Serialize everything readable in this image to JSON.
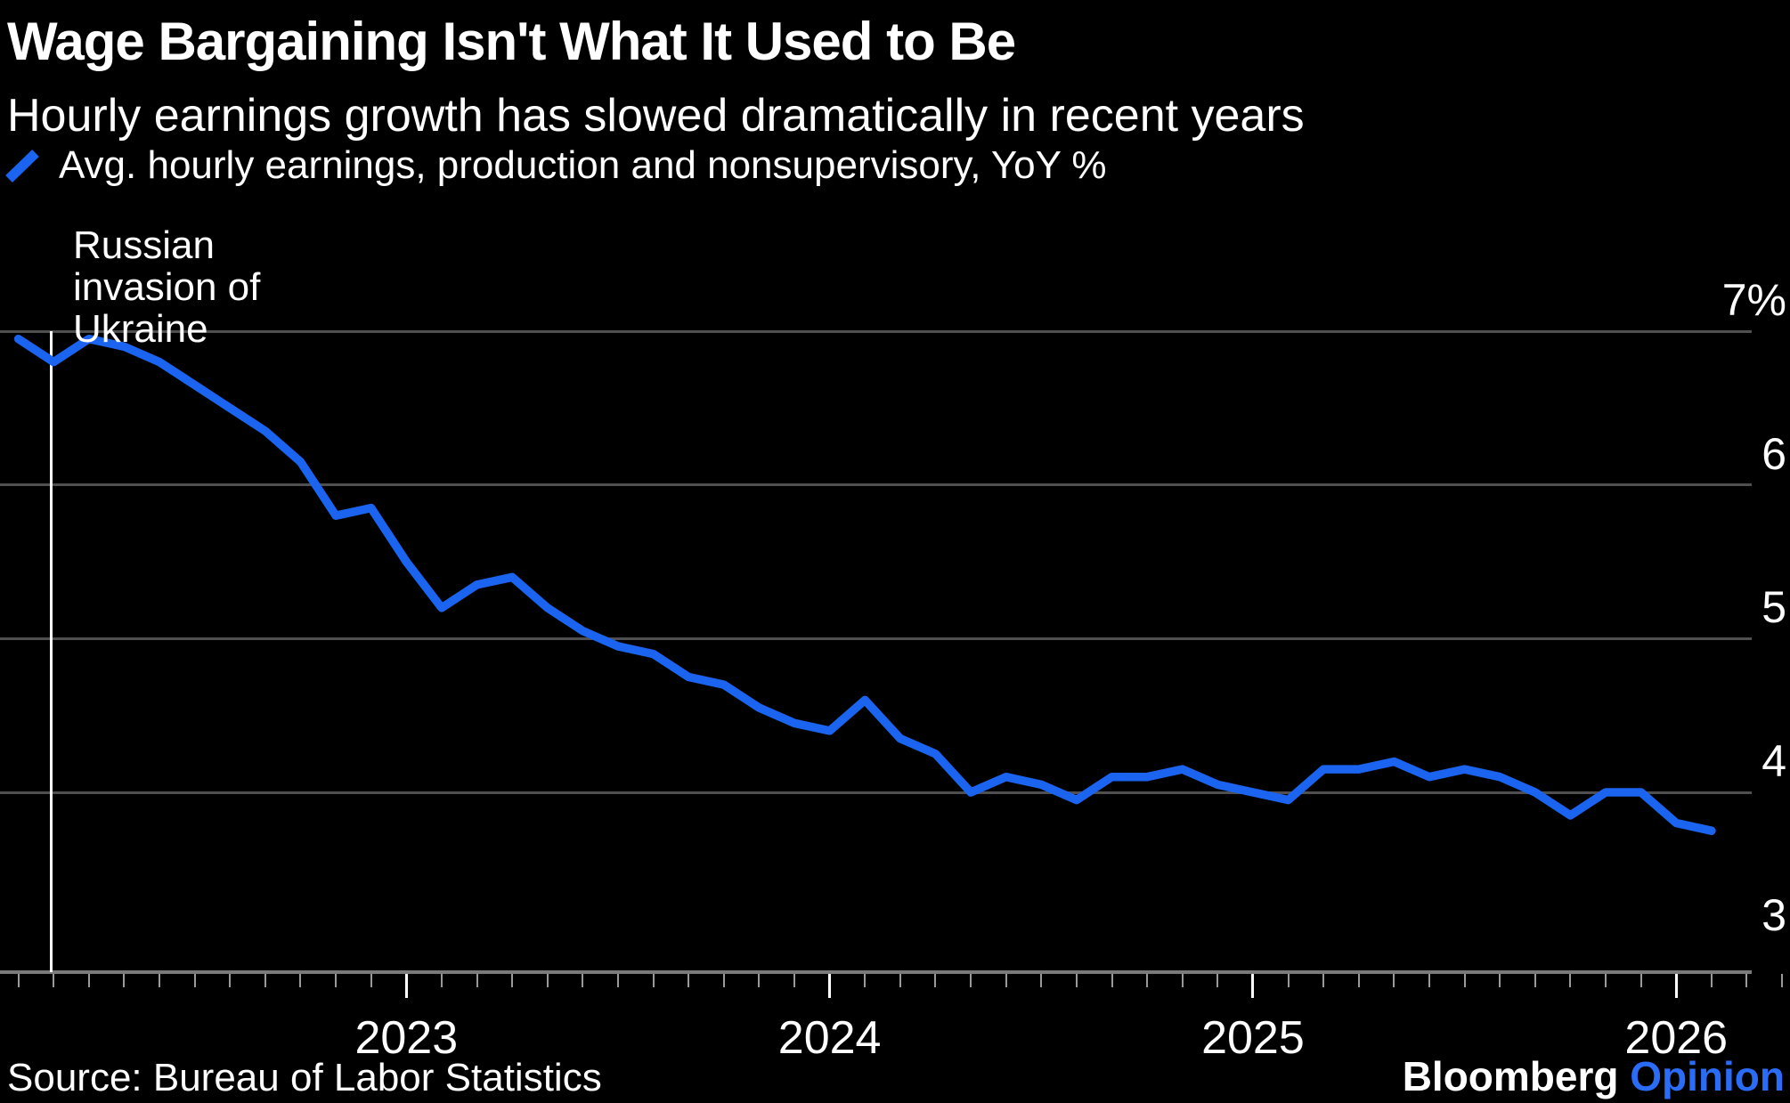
{
  "header": {
    "title": "Wage Bargaining Isn't What It Used to Be",
    "subtitle": "Hourly earnings growth has slowed dramatically in recent years"
  },
  "legend": {
    "label": "Avg. hourly earnings, production and nonsupervisory, YoY %",
    "marker": "blue-diagonal-line",
    "marker_color": "#1A64F0"
  },
  "annotation": {
    "lines": [
      "Russian",
      "invasion of",
      "Ukraine"
    ],
    "event": "Russian invasion of Ukraine",
    "month_index": 0.92
  },
  "footer": {
    "source": "Source: Bureau of Labor Statistics",
    "brand": "Bloomberg",
    "brand_suffix": "Opinion"
  },
  "colors": {
    "background": "#000000",
    "text": "#ffffff",
    "line_blue": "#1A64F0",
    "brand_blue": "#2B6CF6",
    "gridline": "#4f4f4f",
    "axis": "#7a7a7a",
    "minor_tick": "#9a9a9a",
    "major_tick": "#ffffff"
  },
  "chart_data": {
    "type": "line",
    "title": "Wage Bargaining Isn't What It Used to Be",
    "subtitle": "Hourly earnings growth has slowed dramatically in recent years",
    "xlabel": "",
    "ylabel": "YoY %",
    "grid": "horizontal",
    "legend_position": "top-left",
    "x_start_month": "2022-02",
    "x_end_month": "2026-02",
    "x_frequency": "monthly",
    "ylim": [
      2.8,
      7.35
    ],
    "y_gridlines": [
      7,
      6,
      5,
      4
    ],
    "y_ticks": [
      {
        "value": 7,
        "label": "7%"
      },
      {
        "value": 6,
        "label": "6"
      },
      {
        "value": 5,
        "label": "5"
      },
      {
        "value": 4,
        "label": "4"
      },
      {
        "value": 3,
        "label": "3"
      }
    ],
    "x_year_ticks": [
      {
        "label": "2023",
        "month_index": 11
      },
      {
        "label": "2024",
        "month_index": 23
      },
      {
        "label": "2025",
        "month_index": 35
      },
      {
        "label": "2026",
        "month_index": 47
      }
    ],
    "series": [
      {
        "name": "Avg. hourly earnings, production and nonsupervisory, YoY %",
        "color": "#1A64F0",
        "values": [
          6.95,
          6.8,
          6.95,
          6.9,
          6.8,
          6.65,
          6.5,
          6.35,
          6.15,
          5.8,
          5.85,
          5.5,
          5.2,
          5.35,
          5.4,
          5.2,
          5.05,
          4.95,
          4.9,
          4.75,
          4.7,
          4.55,
          4.45,
          4.4,
          4.6,
          4.35,
          4.25,
          4.0,
          4.1,
          4.05,
          3.95,
          4.1,
          4.1,
          4.15,
          4.05,
          4.0,
          3.95,
          4.15,
          4.15,
          4.2,
          4.1,
          4.15,
          4.1,
          4.0,
          3.85,
          4.0,
          4.0,
          3.8,
          3.75
        ]
      }
    ],
    "annotation": {
      "text": "Russian invasion of Ukraine",
      "x_month": "2022-02",
      "month_index": 0.92
    }
  }
}
